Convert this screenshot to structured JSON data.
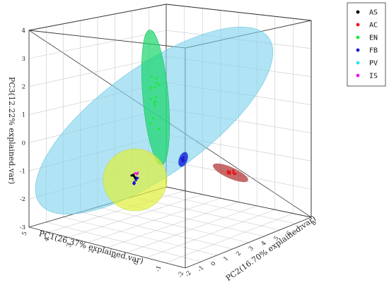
{
  "chart_data": {
    "type": "scatter",
    "title": "",
    "xlabel": "PC1(26.37% explained.var)",
    "ylabel": "PC2(16.70% explained.var)",
    "zlabel": "PC3(12.22% explained.var)",
    "z_ticks": [
      "4",
      "3",
      "2",
      "1",
      "0",
      "-1",
      "-2",
      "-3"
    ],
    "x_ticks": [
      "-2",
      "-1",
      "0",
      "1",
      "2",
      "3",
      "4",
      "5"
    ],
    "y_ticks": [
      "-2",
      "-1",
      "0",
      "1",
      "2",
      "3",
      "4",
      "5",
      "6",
      "7",
      "8"
    ],
    "legend_position": "top-right",
    "grid": true,
    "series": [
      {
        "name": "AS",
        "color": "#000000"
      },
      {
        "name": "AC",
        "color": "#e8141b"
      },
      {
        "name": "EN",
        "color": "#1ee83c"
      },
      {
        "name": "FB",
        "color": "#1a1ad6"
      },
      {
        "name": "PV",
        "color": "#2ce8e8"
      },
      {
        "name": "IS",
        "color": "#e81ae8"
      }
    ]
  }
}
